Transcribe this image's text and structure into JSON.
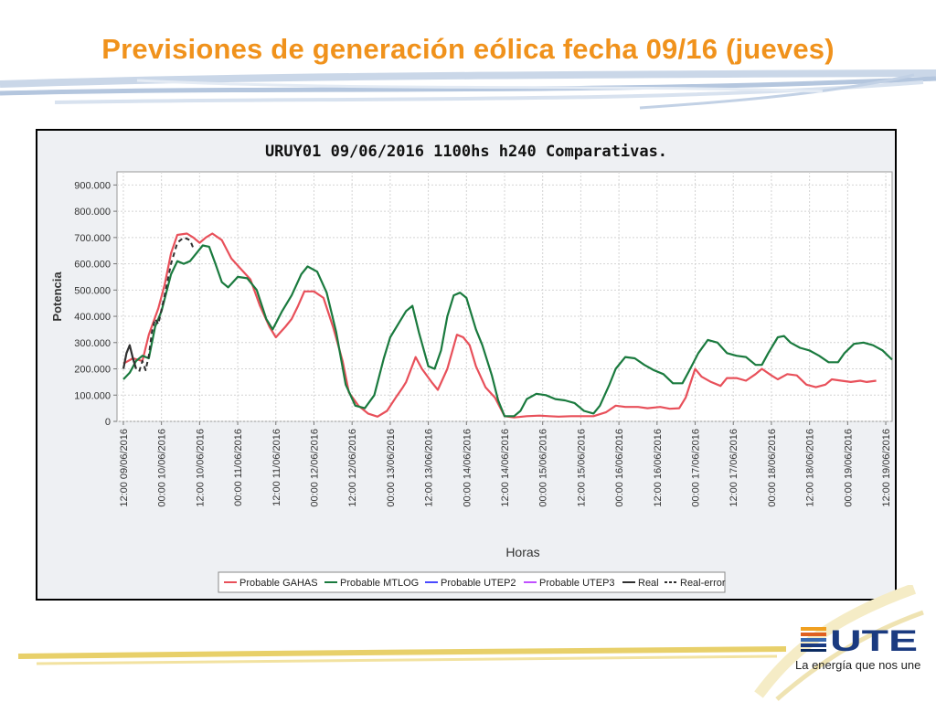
{
  "slide": {
    "title": "Previsiones de generación eólica fecha 09/16 (jueves)",
    "tagline": "La energía que nos une",
    "logo_text": "UTE",
    "title_color": "#f0921c"
  },
  "chart_data": {
    "type": "line",
    "title": "URUY01  09/06/2016  1100hs   h240  Comparativas.",
    "xlabel": "Horas",
    "ylabel": "Potencia",
    "ylim": [
      0,
      950
    ],
    "xlim": [
      -2,
      242
    ],
    "x_unit": "hours since 12:00 09/06/2016",
    "yticks": [
      0,
      100,
      200,
      300,
      400,
      500,
      600,
      700,
      800,
      900
    ],
    "ytick_labels": [
      "0",
      "100.000",
      "200.000",
      "300.000",
      "400.000",
      "500.000",
      "600.000",
      "700.000",
      "800.000",
      "900.000"
    ],
    "xticks": [
      0,
      12,
      24,
      36,
      48,
      60,
      72,
      84,
      96,
      108,
      120,
      132,
      144,
      156,
      168,
      180,
      192,
      204,
      216,
      228,
      240
    ],
    "xtick_labels": [
      "12:00 09/06/2016",
      "00:00 10/06/2016",
      "12:00 10/06/2016",
      "00:00 11/06/2016",
      "12:00 11/06/2016",
      "00:00 12/06/2016",
      "12:00 12/06/2016",
      "00:00 13/06/2016",
      "12:00 13/06/2016",
      "00:00 14/06/2016",
      "12:00 14/06/2016",
      "00:00 15/06/2016",
      "12:00 15/06/2016",
      "00:00 16/06/2016",
      "12:00 16/06/2016",
      "00:00 17/06/2016",
      "12:00 17/06/2016",
      "00:00 18/06/2016",
      "12:00 18/06/2016",
      "00:00 19/06/2016",
      "12:00 19/06/2016"
    ],
    "grid": true,
    "legend_position": "bottom",
    "series": [
      {
        "name": "Probable GAHAS",
        "color": "#e8505a",
        "dash": "solid",
        "points": [
          [
            0,
            220
          ],
          [
            3,
            240
          ],
          [
            6,
            230
          ],
          [
            8,
            330
          ],
          [
            11,
            430
          ],
          [
            13,
            520
          ],
          [
            15,
            640
          ],
          [
            17,
            710
          ],
          [
            20,
            715
          ],
          [
            22,
            700
          ],
          [
            24,
            680
          ],
          [
            26,
            700
          ],
          [
            28,
            715
          ],
          [
            31,
            690
          ],
          [
            34,
            620
          ],
          [
            37,
            580
          ],
          [
            40,
            540
          ],
          [
            43,
            440
          ],
          [
            46,
            360
          ],
          [
            48,
            320
          ],
          [
            51,
            360
          ],
          [
            53,
            390
          ],
          [
            55,
            440
          ],
          [
            57,
            495
          ],
          [
            60,
            495
          ],
          [
            63,
            470
          ],
          [
            66,
            360
          ],
          [
            69,
            230
          ],
          [
            71,
            110
          ],
          [
            74,
            60
          ],
          [
            77,
            30
          ],
          [
            80,
            18
          ],
          [
            83,
            40
          ],
          [
            86,
            95
          ],
          [
            88,
            130
          ],
          [
            89,
            150
          ],
          [
            92,
            245
          ],
          [
            94,
            200
          ],
          [
            97,
            150
          ],
          [
            99,
            120
          ],
          [
            102,
            200
          ],
          [
            105,
            330
          ],
          [
            107,
            320
          ],
          [
            109,
            290
          ],
          [
            111,
            210
          ],
          [
            114,
            130
          ],
          [
            117,
            90
          ],
          [
            120,
            20
          ],
          [
            123,
            15
          ],
          [
            127,
            20
          ],
          [
            131,
            22
          ],
          [
            134,
            20
          ],
          [
            137,
            18
          ],
          [
            141,
            20
          ],
          [
            145,
            20
          ],
          [
            148,
            20
          ],
          [
            152,
            35
          ],
          [
            155,
            60
          ],
          [
            158,
            55
          ],
          [
            162,
            55
          ],
          [
            165,
            50
          ],
          [
            169,
            55
          ],
          [
            172,
            48
          ],
          [
            175,
            50
          ],
          [
            177,
            90
          ],
          [
            180,
            200
          ],
          [
            182,
            170
          ],
          [
            185,
            150
          ],
          [
            188,
            135
          ],
          [
            190,
            165
          ],
          [
            193,
            165
          ],
          [
            196,
            155
          ],
          [
            199,
            180
          ],
          [
            201,
            200
          ],
          [
            204,
            175
          ],
          [
            206,
            160
          ],
          [
            209,
            180
          ],
          [
            212,
            175
          ],
          [
            215,
            140
          ],
          [
            218,
            130
          ],
          [
            221,
            140
          ],
          [
            223,
            160
          ],
          [
            226,
            155
          ],
          [
            229,
            150
          ],
          [
            232,
            155
          ],
          [
            234,
            150
          ],
          [
            237,
            155
          ]
        ]
      },
      {
        "name": "Probable MTLOG",
        "color": "#1a7a3e",
        "dash": "solid",
        "points": [
          [
            0,
            160
          ],
          [
            2,
            185
          ],
          [
            4,
            230
          ],
          [
            6,
            250
          ],
          [
            8,
            240
          ],
          [
            10,
            360
          ],
          [
            12,
            420
          ],
          [
            15,
            560
          ],
          [
            17,
            610
          ],
          [
            19,
            600
          ],
          [
            21,
            610
          ],
          [
            23,
            640
          ],
          [
            25,
            670
          ],
          [
            27,
            665
          ],
          [
            29,
            600
          ],
          [
            31,
            530
          ],
          [
            33,
            510
          ],
          [
            36,
            550
          ],
          [
            39,
            545
          ],
          [
            42,
            500
          ],
          [
            45,
            390
          ],
          [
            47,
            350
          ],
          [
            50,
            420
          ],
          [
            53,
            480
          ],
          [
            56,
            560
          ],
          [
            58,
            590
          ],
          [
            61,
            570
          ],
          [
            64,
            490
          ],
          [
            67,
            340
          ],
          [
            70,
            140
          ],
          [
            73,
            60
          ],
          [
            76,
            50
          ],
          [
            79,
            100
          ],
          [
            82,
            240
          ],
          [
            84,
            320
          ],
          [
            87,
            380
          ],
          [
            89,
            420
          ],
          [
            91,
            440
          ],
          [
            93,
            340
          ],
          [
            96,
            210
          ],
          [
            98,
            200
          ],
          [
            100,
            270
          ],
          [
            102,
            400
          ],
          [
            104,
            480
          ],
          [
            106,
            490
          ],
          [
            108,
            470
          ],
          [
            111,
            350
          ],
          [
            113,
            290
          ],
          [
            116,
            175
          ],
          [
            118,
            80
          ],
          [
            120,
            20
          ],
          [
            123,
            20
          ],
          [
            125,
            40
          ],
          [
            127,
            85
          ],
          [
            130,
            105
          ],
          [
            133,
            100
          ],
          [
            136,
            85
          ],
          [
            139,
            80
          ],
          [
            142,
            70
          ],
          [
            145,
            40
          ],
          [
            148,
            30
          ],
          [
            150,
            60
          ],
          [
            153,
            140
          ],
          [
            155,
            200
          ],
          [
            158,
            245
          ],
          [
            161,
            240
          ],
          [
            164,
            215
          ],
          [
            167,
            195
          ],
          [
            170,
            180
          ],
          [
            173,
            145
          ],
          [
            176,
            145
          ],
          [
            178,
            190
          ],
          [
            181,
            260
          ],
          [
            184,
            310
          ],
          [
            187,
            300
          ],
          [
            190,
            260
          ],
          [
            193,
            250
          ],
          [
            196,
            245
          ],
          [
            199,
            215
          ],
          [
            201,
            215
          ],
          [
            203,
            260
          ],
          [
            206,
            320
          ],
          [
            208,
            325
          ],
          [
            210,
            300
          ],
          [
            213,
            280
          ],
          [
            216,
            270
          ],
          [
            219,
            250
          ],
          [
            222,
            225
          ],
          [
            225,
            225
          ],
          [
            227,
            260
          ],
          [
            230,
            295
          ],
          [
            233,
            300
          ],
          [
            236,
            290
          ],
          [
            239,
            270
          ],
          [
            242,
            235
          ]
        ]
      },
      {
        "name": "Probable UTEP2",
        "color": "#4a4aff",
        "dash": "solid",
        "points": []
      },
      {
        "name": "Probable UTEP3",
        "color": "#c050ff",
        "dash": "solid",
        "points": []
      },
      {
        "name": "Real",
        "color": "#303030",
        "dash": "solid",
        "points": [
          [
            0,
            200
          ],
          [
            1,
            260
          ],
          [
            2,
            290
          ],
          [
            3,
            240
          ],
          [
            4,
            200
          ]
        ]
      },
      {
        "name": "Real-error",
        "color": "#303030",
        "dash": "dashed",
        "points": [
          [
            5,
            190
          ],
          [
            6,
            230
          ],
          [
            7,
            195
          ],
          [
            8,
            250
          ],
          [
            9,
            340
          ],
          [
            10,
            390
          ],
          [
            11,
            370
          ],
          [
            13,
            480
          ],
          [
            15,
            600
          ],
          [
            17,
            680
          ],
          [
            19,
            700
          ],
          [
            21,
            690
          ],
          [
            22,
            660
          ]
        ]
      }
    ]
  }
}
